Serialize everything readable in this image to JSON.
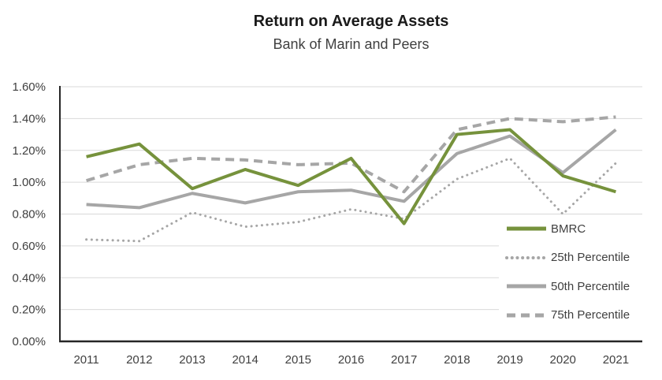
{
  "header": {
    "title": "Return on Average Assets",
    "subtitle": "Bank of Marin and Peers"
  },
  "chart_data": {
    "type": "line",
    "title": "Return on Average Assets",
    "subtitle": "Bank of Marin and Peers",
    "categories": [
      "2011",
      "2012",
      "2013",
      "2014",
      "2015",
      "2016",
      "2017",
      "2018",
      "2019",
      "2020",
      "2021"
    ],
    "series": [
      {
        "name": "BMRC",
        "color": "#76923C",
        "line_style": "solid",
        "line_width": 4,
        "values": [
          1.16,
          1.24,
          0.96,
          1.08,
          0.98,
          1.15,
          0.74,
          1.3,
          1.33,
          1.04,
          0.94
        ]
      },
      {
        "name": "25th Percentile",
        "color": "#A6A6A6",
        "line_style": "dotted",
        "line_width": 3,
        "values": [
          0.64,
          0.63,
          0.81,
          0.72,
          0.75,
          0.83,
          0.77,
          1.02,
          1.15,
          0.8,
          1.12
        ]
      },
      {
        "name": "50th Percentile",
        "color": "#A6A6A6",
        "line_style": "solid",
        "line_width": 4,
        "values": [
          0.86,
          0.84,
          0.93,
          0.87,
          0.94,
          0.95,
          0.88,
          1.18,
          1.29,
          1.06,
          1.33
        ]
      },
      {
        "name": "75th Percentile",
        "color": "#A6A6A6",
        "line_style": "dashed",
        "line_width": 4,
        "values": [
          1.01,
          1.11,
          1.15,
          1.14,
          1.11,
          1.12,
          0.94,
          1.33,
          1.4,
          1.38,
          1.41
        ]
      }
    ],
    "ylim": [
      0,
      1.6
    ],
    "ytick_step": 0.2,
    "ytick_labels": [
      "0.00%",
      "0.20%",
      "0.40%",
      "0.60%",
      "0.80%",
      "1.00%",
      "1.20%",
      "1.40%",
      "1.60%"
    ],
    "xlabel": "",
    "ylabel": "",
    "grid": true,
    "legend_position": "middle-right",
    "colors": {
      "grid_line": "#D9D9D9",
      "axis_line": "#262626",
      "tick_text": "#404040"
    }
  }
}
